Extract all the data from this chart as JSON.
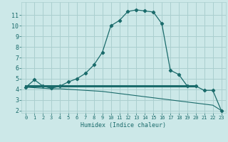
{
  "xlabel": "Humidex (Indice chaleur)",
  "bg_color": "#cce8e8",
  "grid_color": "#aacfcf",
  "line_color": "#1a6b6b",
  "xlim": [
    -0.5,
    23.5
  ],
  "ylim": [
    1.8,
    12.2
  ],
  "xticks": [
    0,
    1,
    2,
    3,
    4,
    5,
    6,
    7,
    8,
    9,
    10,
    11,
    12,
    13,
    14,
    15,
    16,
    17,
    18,
    19,
    20,
    21,
    22,
    23
  ],
  "yticks": [
    2,
    3,
    4,
    5,
    6,
    7,
    8,
    9,
    10,
    11
  ],
  "curve1_x": [
    0,
    1,
    2,
    3,
    4,
    5,
    6,
    7,
    8,
    9,
    10,
    11,
    12,
    13,
    14,
    15,
    16,
    17,
    18,
    19,
    20,
    21,
    22,
    23
  ],
  "curve1_y": [
    4.2,
    4.9,
    4.3,
    4.1,
    4.3,
    4.7,
    5.0,
    5.5,
    6.3,
    7.5,
    10.0,
    10.5,
    11.35,
    11.5,
    11.4,
    11.3,
    10.2,
    5.8,
    5.4,
    4.3,
    4.3,
    3.9,
    3.9,
    2.0
  ],
  "curve2_x": [
    0,
    1,
    2,
    3,
    4,
    5,
    6,
    7,
    8,
    9,
    10,
    11,
    12,
    13,
    14,
    15,
    16,
    17,
    18,
    19,
    20,
    21,
    22,
    23
  ],
  "curve2_y": [
    4.2,
    4.15,
    4.1,
    4.05,
    4.05,
    4.0,
    3.95,
    3.9,
    3.85,
    3.8,
    3.7,
    3.6,
    3.5,
    3.4,
    3.3,
    3.2,
    3.1,
    3.0,
    2.9,
    2.8,
    2.7,
    2.6,
    2.5,
    2.0
  ],
  "curve3_x": [
    0,
    20
  ],
  "curve3_y": [
    4.3,
    4.3
  ]
}
